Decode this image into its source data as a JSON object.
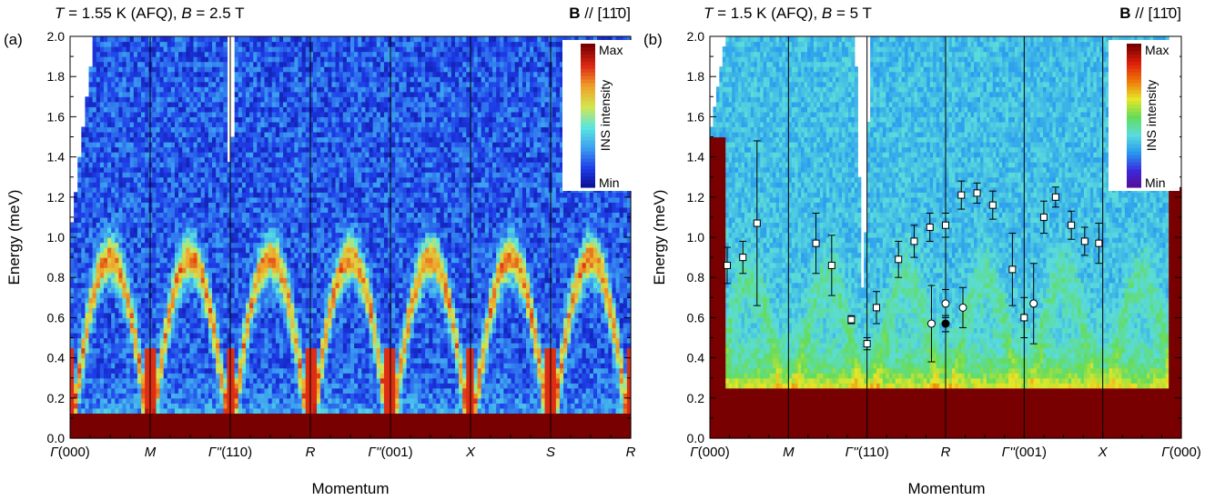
{
  "chart_data": [
    {
      "type": "heatmap",
      "panel_label": "(a)",
      "title_left": "T = 1.55 K (AFQ), B = 2.5 T",
      "title_right": "B // [1̅1̅0]",
      "title_right_display": "B // [11̄0]",
      "ylabel": "Energy (meV)",
      "xlabel": "Momentum",
      "ylim": [
        0,
        2.0
      ],
      "y_ticks": [
        "0.0",
        "0.2",
        "0.4",
        "0.6",
        "0.8",
        "1.0",
        "1.2",
        "1.4",
        "1.6",
        "1.8",
        "2.0"
      ],
      "x_path_labels": [
        "Γ(000)",
        "M",
        "Γ''(110)",
        "R",
        "Γ''(001)",
        "X",
        "S",
        "R"
      ],
      "x_path_positions": [
        0,
        1,
        2,
        3,
        4,
        5,
        6,
        7
      ],
      "colorbar": {
        "label": "INS intensity",
        "max_label": "Max",
        "min_label": "Min",
        "scheme": "jet"
      },
      "colorscale": [
        "#0a0a8c",
        "#1e3ce8",
        "#3ca0f0",
        "#5ae6e0",
        "#d2e650",
        "#f0a028",
        "#dc2814",
        "#780000"
      ],
      "dispersion_features": [
        {
          "segment": "Γ(000)-M",
          "arc_max_meV": 1.0
        },
        {
          "segment": "M-Γ''(110)",
          "arc_max_meV": 0.85
        },
        {
          "segment": "Γ''(110)-R",
          "arc_max_meV": 0.9
        },
        {
          "segment": "R-Γ''(001)",
          "arc_max_meV": 0.85
        },
        {
          "segment": "Γ''(001)-R",
          "arc_max_meV": 0.8
        }
      ],
      "gap_meV": 0.12,
      "grid": false
    },
    {
      "type": "heatmap",
      "panel_label": "(b)",
      "title_left": "T = 1.5 K (AFQ), B = 5 T",
      "title_right_display": "B // [11̄0]",
      "ylabel": "Energy (meV)",
      "xlabel": "Momentum",
      "ylim": [
        0,
        2.0
      ],
      "y_ticks": [
        "0.0",
        "0.2",
        "0.4",
        "0.6",
        "0.8",
        "1.0",
        "1.2",
        "1.4",
        "1.6",
        "1.8",
        "2.0"
      ],
      "x_path_labels": [
        "Γ(000)",
        "M",
        "Γ''(110)",
        "R",
        "Γ''(001)",
        "X",
        "Γ(000)"
      ],
      "x_path_positions": [
        0,
        1,
        2,
        3,
        4,
        5,
        6
      ],
      "colorbar": {
        "label": "INS intensity",
        "max_label": "Max",
        "min_label": "Min",
        "scheme": "rainbow"
      },
      "colorscale": [
        "#5a0a8c",
        "#3c28dc",
        "#2896f0",
        "#5adcdc",
        "#64dc5a",
        "#e6e628",
        "#f0780a",
        "#dc1e0a",
        "#780000"
      ],
      "gap_meV": 0.25,
      "grid": false,
      "series": [
        {
          "marker": "square",
          "points": [
            {
              "x": 0.22,
              "y": 0.86,
              "err": 0.09
            },
            {
              "x": 0.42,
              "y": 0.9,
              "err": 0.08
            },
            {
              "x": 0.6,
              "y": 1.07,
              "err": 0.41
            },
            {
              "x": 1.35,
              "y": 0.97,
              "err": 0.15
            },
            {
              "x": 1.55,
              "y": 0.86,
              "err": 0.15
            },
            {
              "x": 1.8,
              "y": 0.59,
              "err": 0.02
            },
            {
              "x": 2.0,
              "y": 0.47,
              "err": 0.03
            },
            {
              "x": 2.12,
              "y": 0.65,
              "err": 0.08
            },
            {
              "x": 2.4,
              "y": 0.89,
              "err": 0.09
            },
            {
              "x": 2.6,
              "y": 0.98,
              "err": 0.08
            },
            {
              "x": 2.8,
              "y": 1.05,
              "err": 0.07
            },
            {
              "x": 3.0,
              "y": 1.06,
              "err": 0.06
            },
            {
              "x": 3.2,
              "y": 1.21,
              "err": 0.07
            },
            {
              "x": 3.4,
              "y": 1.22,
              "err": 0.05
            },
            {
              "x": 3.6,
              "y": 1.16,
              "err": 0.07
            },
            {
              "x": 3.85,
              "y": 0.84,
              "err": 0.18
            },
            {
              "x": 4.0,
              "y": 0.6,
              "err": 0.1
            },
            {
              "x": 4.25,
              "y": 1.1,
              "err": 0.08
            },
            {
              "x": 4.4,
              "y": 1.2,
              "err": 0.05
            },
            {
              "x": 4.6,
              "y": 1.06,
              "err": 0.07
            },
            {
              "x": 4.77,
              "y": 0.98,
              "err": 0.07
            },
            {
              "x": 4.95,
              "y": 0.97,
              "err": 0.1
            }
          ]
        },
        {
          "marker": "circle",
          "points": [
            {
              "x": 2.82,
              "y": 0.57,
              "err": 0.19
            },
            {
              "x": 3.0,
              "y": 0.67,
              "err": 0.07
            },
            {
              "x": 3.22,
              "y": 0.65,
              "err": 0.1
            },
            {
              "x": 4.12,
              "y": 0.67,
              "err": 0.2
            }
          ]
        },
        {
          "marker": "filled-circle",
          "points": [
            {
              "x": 3.0,
              "y": 0.57,
              "err": 0.04
            }
          ]
        }
      ]
    }
  ]
}
